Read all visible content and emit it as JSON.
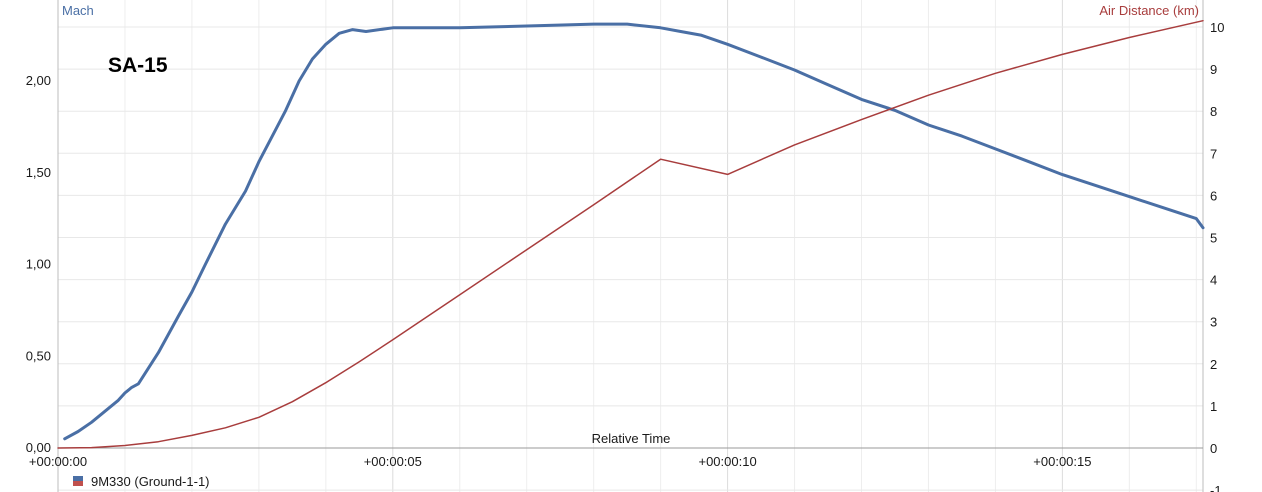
{
  "chart_data": {
    "type": "line",
    "title": "SA-15",
    "xlabel": "Relative Time",
    "x_ticks": [
      "+00:00:00",
      "+00:00:05",
      "+00:00:10",
      "+00:00:15"
    ],
    "x_range_seconds": [
      0,
      17.1
    ],
    "y_left": {
      "label": "Mach",
      "ticks": [
        "0,00",
        "0,50",
        "1,00",
        "1,50",
        "2,00"
      ],
      "range": [
        0,
        2.3
      ],
      "color": "#4a6fa5"
    },
    "y_right": {
      "label": "Air Distance (km)",
      "ticks": [
        "-1",
        "0",
        "1",
        "2",
        "3",
        "4",
        "5",
        "6",
        "7",
        "8",
        "9",
        "10"
      ],
      "range": [
        -1,
        10.3
      ],
      "color": "#a83d3d"
    },
    "grid": true,
    "series": [
      {
        "name": "Mach",
        "axis": "left",
        "color": "#4a6fa5",
        "points": [
          [
            0.1,
            0.05
          ],
          [
            0.3,
            0.09
          ],
          [
            0.5,
            0.14
          ],
          [
            0.7,
            0.2
          ],
          [
            0.9,
            0.26
          ],
          [
            1.0,
            0.3
          ],
          [
            1.1,
            0.33
          ],
          [
            1.2,
            0.35
          ],
          [
            1.5,
            0.52
          ],
          [
            1.8,
            0.72
          ],
          [
            2.0,
            0.85
          ],
          [
            2.2,
            1.0
          ],
          [
            2.5,
            1.22
          ],
          [
            2.8,
            1.4
          ],
          [
            3.0,
            1.56
          ],
          [
            3.2,
            1.7
          ],
          [
            3.4,
            1.84
          ],
          [
            3.6,
            2.0
          ],
          [
            3.8,
            2.12
          ],
          [
            4.0,
            2.2
          ],
          [
            4.2,
            2.26
          ],
          [
            4.4,
            2.28
          ],
          [
            4.6,
            2.27
          ],
          [
            5.0,
            2.29
          ],
          [
            6.0,
            2.29
          ],
          [
            7.0,
            2.3
          ],
          [
            8.0,
            2.31
          ],
          [
            8.5,
            2.31
          ],
          [
            9.0,
            2.29
          ],
          [
            9.3,
            2.27
          ],
          [
            9.6,
            2.25
          ],
          [
            10.0,
            2.2
          ],
          [
            10.5,
            2.13
          ],
          [
            11.0,
            2.06
          ],
          [
            11.5,
            1.98
          ],
          [
            12.0,
            1.9
          ],
          [
            12.5,
            1.84
          ],
          [
            13.0,
            1.76
          ],
          [
            13.5,
            1.7
          ],
          [
            14.0,
            1.63
          ],
          [
            14.5,
            1.56
          ],
          [
            15.0,
            1.49
          ],
          [
            15.5,
            1.43
          ],
          [
            16.0,
            1.37
          ],
          [
            16.5,
            1.31
          ],
          [
            17.0,
            1.25
          ],
          [
            17.1,
            1.2
          ]
        ]
      },
      {
        "name": "Air Distance (km)",
        "axis": "right",
        "color": "#a83d3d",
        "points": [
          [
            0.0,
            0.0
          ],
          [
            0.5,
            0.01
          ],
          [
            1.0,
            0.06
          ],
          [
            1.5,
            0.15
          ],
          [
            2.0,
            0.3
          ],
          [
            2.5,
            0.48
          ],
          [
            3.0,
            0.73
          ],
          [
            3.5,
            1.1
          ],
          [
            4.0,
            1.55
          ],
          [
            4.5,
            2.05
          ],
          [
            5.0,
            2.57
          ],
          [
            6.0,
            3.64
          ],
          [
            7.0,
            4.71
          ],
          [
            8.0,
            5.78
          ],
          [
            9.0,
            6.86
          ],
          [
            10.0,
            6.5
          ],
          [
            11.0,
            7.2
          ],
          [
            12.0,
            7.8
          ],
          [
            13.0,
            8.38
          ],
          [
            14.0,
            8.9
          ],
          [
            15.0,
            9.35
          ],
          [
            16.0,
            9.75
          ],
          [
            17.1,
            10.15
          ]
        ]
      }
    ],
    "legend": {
      "placement": "bottom-left",
      "entries": [
        {
          "label": "9M330 (Ground-1-1)",
          "colors": [
            "#4a6fa5",
            "#c0504d"
          ]
        }
      ]
    }
  }
}
